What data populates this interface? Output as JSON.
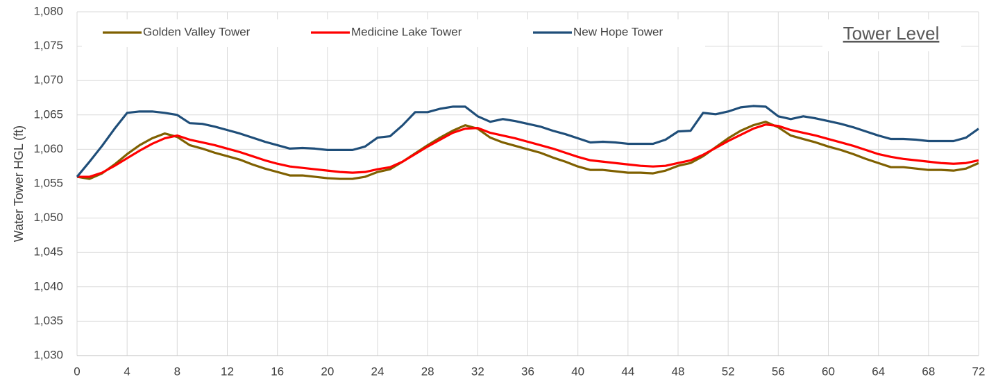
{
  "chart_data": {
    "type": "line",
    "title": "Tower Level",
    "y_label": "Water Tower HGL (ft)",
    "x": [
      0,
      1,
      2,
      3,
      4,
      5,
      6,
      7,
      8,
      9,
      10,
      11,
      12,
      13,
      14,
      15,
      16,
      17,
      18,
      19,
      20,
      21,
      22,
      23,
      24,
      25,
      26,
      27,
      28,
      29,
      30,
      31,
      32,
      33,
      34,
      35,
      36,
      37,
      38,
      39,
      40,
      41,
      42,
      43,
      44,
      45,
      46,
      47,
      48,
      49,
      50,
      51,
      52,
      53,
      54,
      55,
      56,
      57,
      58,
      59,
      60,
      61,
      62,
      63,
      64,
      65,
      66,
      67,
      68,
      69,
      70,
      71,
      72
    ],
    "series": [
      {
        "name": "Golden Valley Tower",
        "color": "#7f6000",
        "values": [
          1056,
          1055.7,
          1056.5,
          1057.8,
          1059.3,
          1060.6,
          1061.6,
          1062.3,
          1061.8,
          1060.6,
          1060.1,
          1059.5,
          1059,
          1058.5,
          1057.8,
          1057.2,
          1056.7,
          1056.2,
          1056.2,
          1056,
          1055.8,
          1055.7,
          1055.7,
          1056,
          1056.7,
          1057.1,
          1058.2,
          1059.4,
          1060.6,
          1061.7,
          1062.7,
          1063.5,
          1063,
          1061.7,
          1061,
          1060.5,
          1060,
          1059.5,
          1058.8,
          1058.2,
          1057.5,
          1057,
          1057,
          1056.8,
          1056.6,
          1056.6,
          1056.5,
          1056.9,
          1057.6,
          1058,
          1059,
          1060.3,
          1061.6,
          1062.7,
          1063.5,
          1064,
          1063.2,
          1062,
          1061.5,
          1061,
          1060.4,
          1059.9,
          1059.3,
          1058.6,
          1058,
          1057.4,
          1057.4,
          1057.2,
          1057,
          1057,
          1056.9,
          1057.2,
          1058
        ]
      },
      {
        "name": "Medicine Lake Tower",
        "color": "#ff0000",
        "values": [
          1056,
          1056,
          1056.6,
          1057.6,
          1058.7,
          1059.8,
          1060.8,
          1061.6,
          1062,
          1061.4,
          1061,
          1060.6,
          1060.1,
          1059.6,
          1059,
          1058.4,
          1057.9,
          1057.5,
          1057.3,
          1057.1,
          1056.9,
          1056.7,
          1056.6,
          1056.7,
          1057.1,
          1057.4,
          1058.2,
          1059.3,
          1060.4,
          1061.4,
          1062.4,
          1063,
          1063.1,
          1062.4,
          1062,
          1061.6,
          1061.1,
          1060.6,
          1060.1,
          1059.5,
          1058.9,
          1058.4,
          1058.2,
          1058,
          1057.8,
          1057.6,
          1057.5,
          1057.6,
          1058,
          1058.4,
          1059.2,
          1060.2,
          1061.2,
          1062.1,
          1063,
          1063.6,
          1063.4,
          1062.8,
          1062.4,
          1062,
          1061.5,
          1061,
          1060.5,
          1059.9,
          1059.3,
          1058.9,
          1058.6,
          1058.4,
          1058.2,
          1058,
          1057.9,
          1058,
          1058.4
        ]
      },
      {
        "name": "New Hope Tower",
        "color": "#1f4e79",
        "values": [
          1056,
          1058.2,
          1060.5,
          1063,
          1065.3,
          1065.5,
          1065.5,
          1065.3,
          1065,
          1063.8,
          1063.7,
          1063.3,
          1062.8,
          1062.3,
          1061.7,
          1061.1,
          1060.6,
          1060.1,
          1060.2,
          1060.1,
          1059.9,
          1059.9,
          1059.9,
          1060.4,
          1061.7,
          1061.9,
          1063.5,
          1065.4,
          1065.4,
          1065.9,
          1066.2,
          1066.2,
          1064.8,
          1064,
          1064.4,
          1064.1,
          1063.7,
          1063.3,
          1062.7,
          1062.2,
          1061.6,
          1061,
          1061.1,
          1061,
          1060.8,
          1060.8,
          1060.8,
          1061.4,
          1062.6,
          1062.7,
          1065.3,
          1065.1,
          1065.5,
          1066.1,
          1066.3,
          1066.2,
          1064.8,
          1064.4,
          1064.8,
          1064.5,
          1064.1,
          1063.7,
          1063.2,
          1062.6,
          1062,
          1061.5,
          1061.5,
          1061.4,
          1061.2,
          1061.2,
          1061.2,
          1061.7,
          1063
        ]
      }
    ],
    "xlim": [
      0,
      72
    ],
    "xticks": [
      0,
      4,
      8,
      12,
      16,
      20,
      24,
      28,
      32,
      36,
      40,
      44,
      48,
      52,
      56,
      60,
      64,
      68,
      72
    ],
    "ylim": [
      1030,
      1080
    ],
    "yticks": [
      {
        "value": 1030,
        "label": "1,030"
      },
      {
        "value": 1035,
        "label": "1,035"
      },
      {
        "value": 1040,
        "label": "1,040"
      },
      {
        "value": 1045,
        "label": "1,045"
      },
      {
        "value": 1050,
        "label": "1,050"
      },
      {
        "value": 1055,
        "label": "1,055"
      },
      {
        "value": 1060,
        "label": "1,060"
      },
      {
        "value": 1065,
        "label": "1,065"
      },
      {
        "value": 1070,
        "label": "1,070"
      },
      {
        "value": 1075,
        "label": "1,075"
      },
      {
        "value": 1080,
        "label": "1,080"
      }
    ],
    "grid": true,
    "legend": "top"
  }
}
